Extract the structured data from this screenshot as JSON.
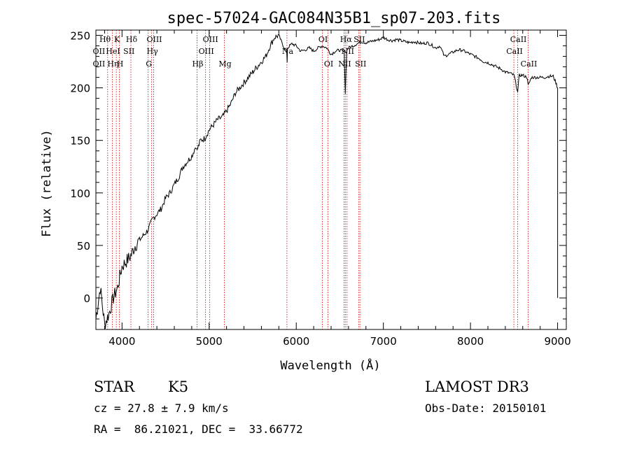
{
  "chart_data": {
    "type": "line",
    "title": "spec-57024-GAC084N35B1_sp07-203.fits",
    "xlabel": "Wavelength (Å)",
    "ylabel": "Flux (relative)",
    "xlim": [
      3700,
      9100
    ],
    "ylim": [
      -30,
      255
    ],
    "xticks": [
      4000,
      5000,
      6000,
      7000,
      8000,
      9000
    ],
    "yticks": [
      0,
      50,
      100,
      150,
      200,
      250
    ],
    "grid": false,
    "line_color": "#000000",
    "marker_color": "#cc0000",
    "series": [
      {
        "x": [
          3700,
          3750,
          3800,
          3850,
          3900,
          3950,
          4000,
          4050,
          4100,
          4150,
          4200,
          4250,
          4300,
          4350,
          4400,
          4450,
          4500,
          4550,
          4600,
          4650,
          4700,
          4750,
          4800,
          4850,
          4860,
          4900,
          4950,
          5000,
          5050,
          5100,
          5150,
          5200,
          5250,
          5300,
          5350,
          5400,
          5450,
          5500,
          5550,
          5600,
          5650,
          5700,
          5750,
          5800,
          5850,
          5890,
          5895,
          5900,
          5950,
          6000,
          6050,
          6100,
          6150,
          6200,
          6250,
          6300,
          6350,
          6400,
          6450,
          6500,
          6550,
          6563,
          6580,
          6600,
          6650,
          6700,
          6750,
          6800,
          6850,
          6900,
          6950,
          7000,
          7050,
          7100,
          7150,
          7200,
          7250,
          7300,
          7350,
          7400,
          7450,
          7500,
          7550,
          7600,
          7650,
          7700,
          7750,
          7800,
          7850,
          7900,
          7950,
          8000,
          8050,
          8100,
          8150,
          8200,
          8250,
          8300,
          8350,
          8400,
          8450,
          8500,
          8542,
          8560,
          8600,
          8650,
          8662,
          8700,
          8750,
          8800,
          8850,
          8900,
          8950,
          8980,
          9000,
          9000
        ],
        "y": [
          -20,
          10,
          -25,
          -15,
          0,
          10,
          30,
          35,
          40,
          50,
          55,
          60,
          65,
          75,
          80,
          85,
          95,
          100,
          108,
          115,
          125,
          130,
          135,
          145,
          140,
          150,
          152,
          160,
          165,
          170,
          172,
          178,
          185,
          195,
          200,
          205,
          210,
          215,
          220,
          225,
          230,
          240,
          248,
          250,
          240,
          235,
          225,
          238,
          242,
          240,
          235,
          236,
          238,
          235,
          238,
          240,
          238,
          232,
          235,
          236,
          234,
          195,
          236,
          238,
          240,
          242,
          244,
          243,
          244,
          245,
          246,
          248,
          246,
          245,
          246,
          245,
          244,
          243,
          244,
          243,
          242,
          243,
          241,
          238,
          240,
          230,
          232,
          234,
          236,
          236,
          234,
          232,
          230,
          228,
          225,
          224,
          222,
          220,
          218,
          215,
          214,
          212,
          196,
          212,
          212,
          210,
          202,
          210,
          210,
          210,
          210,
          211,
          211,
          205,
          200,
          0
        ]
      }
    ],
    "line_markers": [
      {
        "wl": 3835,
        "label": "OII"
      },
      {
        "wl": 3889,
        "label": "Hη"
      },
      {
        "wl": 3934,
        "label": "K"
      },
      {
        "wl": 3970,
        "label": "H"
      },
      {
        "wl": 4102,
        "label": "Hδ"
      },
      {
        "wl": 4300,
        "label": "G"
      },
      {
        "wl": 4340,
        "label": "Hγ"
      },
      {
        "wl": 4363,
        "label": "OIII"
      },
      {
        "wl": 4861,
        "label": "Hβ"
      },
      {
        "wl": 4959,
        "label": "OIII"
      },
      {
        "wl": 5007,
        "label": "OIII"
      },
      {
        "wl": 5175,
        "label": "Mg"
      },
      {
        "wl": 5893,
        "label": "Na"
      },
      {
        "wl": 6300,
        "label": "OI"
      },
      {
        "wl": 6364,
        "label": "OI"
      },
      {
        "wl": 6548,
        "label": "NII"
      },
      {
        "wl": 6563,
        "label": "Hα"
      },
      {
        "wl": 6583,
        "label": "NII"
      },
      {
        "wl": 6716,
        "label": "SII"
      },
      {
        "wl": 6731,
        "label": "SII"
      },
      {
        "wl": 8498,
        "label": "CaII"
      },
      {
        "wl": 8542,
        "label": "CaII"
      },
      {
        "wl": 8662,
        "label": "CaII"
      }
    ],
    "top_labels": [
      {
        "text": "Hθ",
        "wl": 3797,
        "row": 0
      },
      {
        "text": "K",
        "wl": 3934,
        "row": 0
      },
      {
        "text": "Hδ",
        "wl": 4102,
        "row": 0
      },
      {
        "text": "OIII",
        "wl": 4363,
        "row": 0
      },
      {
        "text": "OIII",
        "wl": 5007,
        "row": 0
      },
      {
        "text": "OI",
        "wl": 6300,
        "row": 0
      },
      {
        "text": "Hα",
        "wl": 6563,
        "row": 0
      },
      {
        "text": "SII",
        "wl": 6716,
        "row": 0
      },
      {
        "text": "CaII",
        "wl": 8542,
        "row": 0
      },
      {
        "text": "OII",
        "wl": 3727,
        "row": 1
      },
      {
        "text": "HeI",
        "wl": 3889,
        "row": 1
      },
      {
        "text": "SII",
        "wl": 4072,
        "row": 1
      },
      {
        "text": "Hγ",
        "wl": 4340,
        "row": 1
      },
      {
        "text": "OIII",
        "wl": 4959,
        "row": 1
      },
      {
        "text": "Na",
        "wl": 5893,
        "row": 1
      },
      {
        "text": "NII",
        "wl": 6583,
        "row": 1
      },
      {
        "text": "CaII",
        "wl": 8498,
        "row": 1
      },
      {
        "text": "OII",
        "wl": 3727,
        "row": 2
      },
      {
        "text": "Hη",
        "wl": 3889,
        "row": 2
      },
      {
        "text": "H",
        "wl": 3970,
        "row": 2
      },
      {
        "text": "G",
        "wl": 4300,
        "row": 2
      },
      {
        "text": "Hβ",
        "wl": 4861,
        "row": 2
      },
      {
        "text": "Mg",
        "wl": 5175,
        "row": 2
      },
      {
        "text": "OI",
        "wl": 6364,
        "row": 2
      },
      {
        "text": "NII",
        "wl": 6548,
        "row": 2
      },
      {
        "text": "SII",
        "wl": 6731,
        "row": 2
      },
      {
        "text": "CaII",
        "wl": 8662,
        "row": 2
      }
    ]
  },
  "info": {
    "class": "STAR",
    "subclass": "K5",
    "survey": "LAMOST DR3",
    "cz": "cz = 27.8 ± 7.9 km/s",
    "obs_date": "Obs-Date: 20150101",
    "coords": "RA =  86.21021, DEC =  33.66772"
  }
}
